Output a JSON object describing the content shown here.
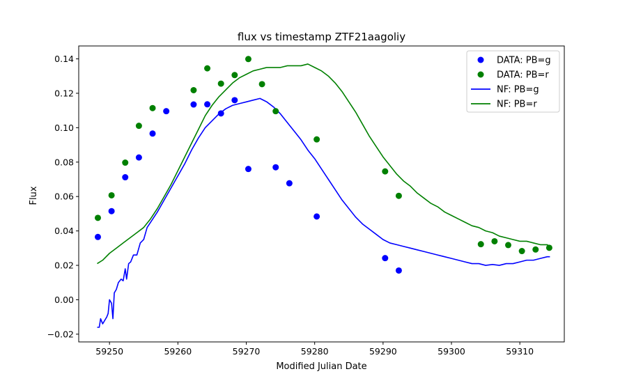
{
  "chart_data": {
    "type": "scatter",
    "title": "flux vs timestamp ZTF21aagoliy",
    "xlabel": "Modified Julian Date",
    "ylabel": "Flux",
    "xlim": [
      59245.5,
      59316.5
    ],
    "ylim": [
      -0.0245,
      0.1475
    ],
    "xticks": [
      59250,
      59260,
      59270,
      59280,
      59290,
      59300,
      59310
    ],
    "yticks": [
      -0.02,
      0.0,
      0.02,
      0.04,
      0.06,
      0.08,
      0.1,
      0.12,
      0.14
    ],
    "ytick_labels": [
      "−0.02",
      "0.00",
      "0.02",
      "0.04",
      "0.06",
      "0.08",
      "0.10",
      "0.12",
      "0.14"
    ],
    "grid": false,
    "legend_position": "top-right",
    "series": [
      {
        "name": "DATA: PB=g",
        "kind": "scatter",
        "color": "#0000ff",
        "points": [
          [
            59248.3,
            0.0365
          ],
          [
            59250.3,
            0.0515
          ],
          [
            59252.3,
            0.0712
          ],
          [
            59254.3,
            0.0827
          ],
          [
            59256.3,
            0.0966
          ],
          [
            59258.3,
            0.1096
          ],
          [
            59262.3,
            0.1135
          ],
          [
            59264.3,
            0.1136
          ],
          [
            59266.3,
            0.1083
          ],
          [
            59268.3,
            0.116
          ],
          [
            59270.3,
            0.076
          ],
          [
            59274.3,
            0.077
          ],
          [
            59276.3,
            0.0677
          ],
          [
            59280.3,
            0.0484
          ],
          [
            59290.3,
            0.0242
          ],
          [
            59292.3,
            0.017
          ]
        ]
      },
      {
        "name": "DATA: PB=r",
        "kind": "scatter",
        "color": "#008000",
        "points": [
          [
            59248.3,
            0.0476
          ],
          [
            59250.3,
            0.0607
          ],
          [
            59252.3,
            0.0797
          ],
          [
            59254.3,
            0.1011
          ],
          [
            59256.3,
            0.1114
          ],
          [
            59262.3,
            0.1218
          ],
          [
            59264.3,
            0.1345
          ],
          [
            59266.3,
            0.1256
          ],
          [
            59268.3,
            0.1306
          ],
          [
            59270.3,
            0.1399
          ],
          [
            59272.3,
            0.1253
          ],
          [
            59274.3,
            0.1096
          ],
          [
            59280.3,
            0.0932
          ],
          [
            59290.3,
            0.0746
          ],
          [
            59292.3,
            0.0604
          ],
          [
            59304.3,
            0.0323
          ],
          [
            59306.3,
            0.034
          ],
          [
            59308.3,
            0.0318
          ],
          [
            59310.3,
            0.0283
          ],
          [
            59312.3,
            0.0292
          ],
          [
            59314.3,
            0.0302
          ]
        ]
      },
      {
        "name": "NF: PB=g",
        "kind": "line",
        "color": "#0000ff",
        "points": [
          [
            59248.2,
            -0.016
          ],
          [
            59248.5,
            -0.016
          ],
          [
            59248.7,
            -0.011
          ],
          [
            59249.0,
            -0.014
          ],
          [
            59249.3,
            -0.012
          ],
          [
            59249.6,
            -0.01
          ],
          [
            59249.8,
            -0.008
          ],
          [
            59250.0,
            0.0
          ],
          [
            59250.3,
            -0.002
          ],
          [
            59250.5,
            -0.011
          ],
          [
            59250.7,
            0.004
          ],
          [
            59251.0,
            0.006
          ],
          [
            59251.3,
            0.01
          ],
          [
            59251.7,
            0.012
          ],
          [
            59252.0,
            0.011
          ],
          [
            59252.3,
            0.018
          ],
          [
            59252.5,
            0.012
          ],
          [
            59252.8,
            0.021
          ],
          [
            59253.1,
            0.022
          ],
          [
            59253.5,
            0.026
          ],
          [
            59254.0,
            0.026
          ],
          [
            59254.5,
            0.033
          ],
          [
            59255.0,
            0.035
          ],
          [
            59255.5,
            0.042
          ],
          [
            59256.0,
            0.045
          ],
          [
            59257.0,
            0.051
          ],
          [
            59258.0,
            0.058
          ],
          [
            59259.0,
            0.065
          ],
          [
            59260.0,
            0.072
          ],
          [
            59261.0,
            0.079
          ],
          [
            59262.0,
            0.087
          ],
          [
            59263.0,
            0.094
          ],
          [
            59264.0,
            0.1
          ],
          [
            59265.0,
            0.104
          ],
          [
            59266.0,
            0.108
          ],
          [
            59267.0,
            0.111
          ],
          [
            59268.0,
            0.113
          ],
          [
            59269.0,
            0.114
          ],
          [
            59270.0,
            0.115
          ],
          [
            59271.0,
            0.116
          ],
          [
            59272.0,
            0.117
          ],
          [
            59273.0,
            0.115
          ],
          [
            59274.0,
            0.112
          ],
          [
            59275.0,
            0.108
          ],
          [
            59276.0,
            0.103
          ],
          [
            59277.0,
            0.098
          ],
          [
            59278.0,
            0.093
          ],
          [
            59279.0,
            0.087
          ],
          [
            59280.0,
            0.082
          ],
          [
            59281.0,
            0.076
          ],
          [
            59282.0,
            0.07
          ],
          [
            59283.0,
            0.064
          ],
          [
            59284.0,
            0.058
          ],
          [
            59285.0,
            0.053
          ],
          [
            59286.0,
            0.048
          ],
          [
            59287.0,
            0.044
          ],
          [
            59288.0,
            0.041
          ],
          [
            59289.0,
            0.038
          ],
          [
            59290.0,
            0.035
          ],
          [
            59291.0,
            0.033
          ],
          [
            59292.0,
            0.032
          ],
          [
            59293.0,
            0.031
          ],
          [
            59294.0,
            0.03
          ],
          [
            59295.0,
            0.029
          ],
          [
            59296.0,
            0.028
          ],
          [
            59297.0,
            0.027
          ],
          [
            59298.0,
            0.026
          ],
          [
            59299.0,
            0.025
          ],
          [
            59300.0,
            0.024
          ],
          [
            59301.0,
            0.023
          ],
          [
            59302.0,
            0.022
          ],
          [
            59303.0,
            0.021
          ],
          [
            59304.0,
            0.021
          ],
          [
            59305.0,
            0.02
          ],
          [
            59306.0,
            0.0205
          ],
          [
            59307.0,
            0.02
          ],
          [
            59308.0,
            0.021
          ],
          [
            59309.0,
            0.021
          ],
          [
            59310.0,
            0.022
          ],
          [
            59311.0,
            0.023
          ],
          [
            59312.0,
            0.023
          ],
          [
            59313.0,
            0.024
          ],
          [
            59314.0,
            0.025
          ],
          [
            59314.4,
            0.025
          ]
        ]
      },
      {
        "name": "NF: PB=r",
        "kind": "line",
        "color": "#008000",
        "points": [
          [
            59248.2,
            0.021
          ],
          [
            59249.0,
            0.023
          ],
          [
            59250.0,
            0.027
          ],
          [
            59251.0,
            0.03
          ],
          [
            59252.0,
            0.033
          ],
          [
            59253.0,
            0.036
          ],
          [
            59254.0,
            0.039
          ],
          [
            59255.0,
            0.042
          ],
          [
            59256.0,
            0.047
          ],
          [
            59257.0,
            0.053
          ],
          [
            59258.0,
            0.06
          ],
          [
            59259.0,
            0.067
          ],
          [
            59260.0,
            0.075
          ],
          [
            59261.0,
            0.083
          ],
          [
            59262.0,
            0.091
          ],
          [
            59263.0,
            0.099
          ],
          [
            59264.0,
            0.107
          ],
          [
            59265.0,
            0.113
          ],
          [
            59266.0,
            0.118
          ],
          [
            59267.0,
            0.122
          ],
          [
            59268.0,
            0.126
          ],
          [
            59269.0,
            0.129
          ],
          [
            59270.0,
            0.131
          ],
          [
            59271.0,
            0.133
          ],
          [
            59272.0,
            0.134
          ],
          [
            59273.0,
            0.135
          ],
          [
            59274.0,
            0.135
          ],
          [
            59275.0,
            0.135
          ],
          [
            59276.0,
            0.136
          ],
          [
            59277.0,
            0.136
          ],
          [
            59278.0,
            0.136
          ],
          [
            59279.0,
            0.137
          ],
          [
            59280.0,
            0.135
          ],
          [
            59281.0,
            0.133
          ],
          [
            59282.0,
            0.13
          ],
          [
            59283.0,
            0.126
          ],
          [
            59284.0,
            0.121
          ],
          [
            59285.0,
            0.115
          ],
          [
            59286.0,
            0.109
          ],
          [
            59287.0,
            0.102
          ],
          [
            59288.0,
            0.095
          ],
          [
            59289.0,
            0.089
          ],
          [
            59290.0,
            0.083
          ],
          [
            59291.0,
            0.078
          ],
          [
            59292.0,
            0.073
          ],
          [
            59293.0,
            0.069
          ],
          [
            59294.0,
            0.066
          ],
          [
            59295.0,
            0.062
          ],
          [
            59296.0,
            0.059
          ],
          [
            59297.0,
            0.056
          ],
          [
            59298.0,
            0.054
          ],
          [
            59299.0,
            0.051
          ],
          [
            59300.0,
            0.049
          ],
          [
            59301.0,
            0.047
          ],
          [
            59302.0,
            0.045
          ],
          [
            59303.0,
            0.043
          ],
          [
            59304.0,
            0.042
          ],
          [
            59305.0,
            0.04
          ],
          [
            59306.0,
            0.039
          ],
          [
            59307.0,
            0.037
          ],
          [
            59308.0,
            0.036
          ],
          [
            59309.0,
            0.035
          ],
          [
            59310.0,
            0.034
          ],
          [
            59311.0,
            0.034
          ],
          [
            59312.0,
            0.033
          ],
          [
            59313.0,
            0.032
          ],
          [
            59314.0,
            0.032
          ],
          [
            59314.4,
            0.031
          ]
        ]
      }
    ]
  }
}
